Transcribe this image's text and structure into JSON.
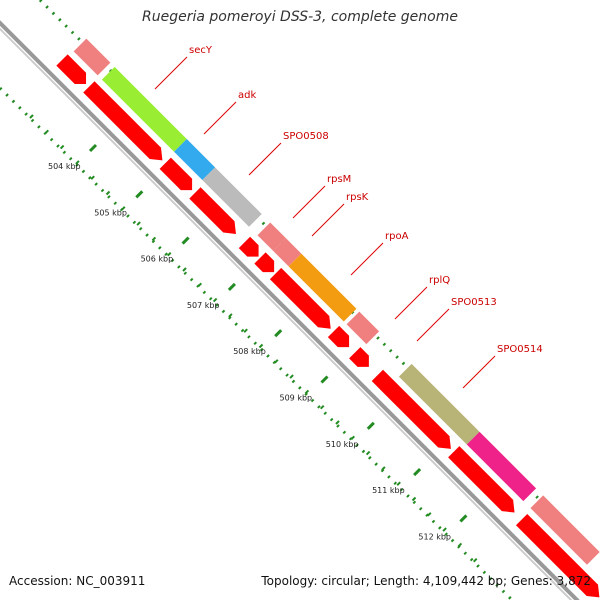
{
  "title": "Ruegeria pomeroyi DSS-3, complete genome",
  "footer": {
    "accession": "Accession: NC_003911",
    "summary": "Topology: circular; Length: 4,109,442 bp; Genes: 3,872"
  },
  "colors": {
    "forward_cds": "#ff0000",
    "faded_feature": "#f08080",
    "backbone": "#888888",
    "ticks": "#228b22",
    "label_line": "#dd0000"
  },
  "kbp_ticks": [
    "504 kbp",
    "505 kbp",
    "506 kbp",
    "507 kbp",
    "508 kbp",
    "509 kbp",
    "510 kbp",
    "511 kbp",
    "512 kbp"
  ],
  "gene_labels": [
    "secY",
    "adk",
    "SPO0508",
    "rpsM",
    "rpsK",
    "rpoA",
    "rplQ",
    "SPO0513",
    "SPO0514"
  ]
}
